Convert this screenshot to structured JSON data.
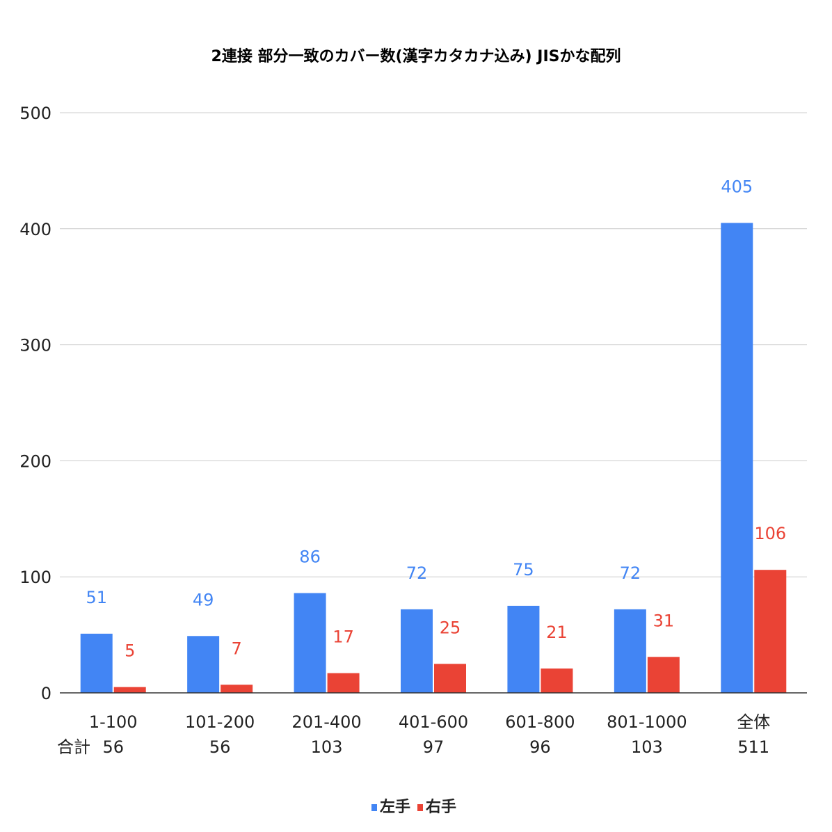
{
  "chart_data": {
    "type": "bar",
    "title": "2連接 部分一致のカバー数(漢字カタカナ込み) JISかな配列",
    "categories": [
      "1-100",
      "101-200",
      "201-400",
      "401-600",
      "601-800",
      "801-1000",
      "全体"
    ],
    "row_label": "合計",
    "totals": [
      "56",
      "56",
      "103",
      "97",
      "96",
      "103",
      "511"
    ],
    "series": [
      {
        "name": "左手",
        "values": [
          51,
          49,
          86,
          72,
          75,
          72,
          405
        ],
        "color": "#4285f4"
      },
      {
        "name": "右手",
        "values": [
          5,
          7,
          17,
          25,
          21,
          31,
          106
        ],
        "color": "#ea4335"
      }
    ],
    "ylim": [
      0,
      500
    ],
    "yticks": [
      0,
      100,
      200,
      300,
      400,
      500
    ],
    "grid": true,
    "legend_position": "bottom"
  }
}
